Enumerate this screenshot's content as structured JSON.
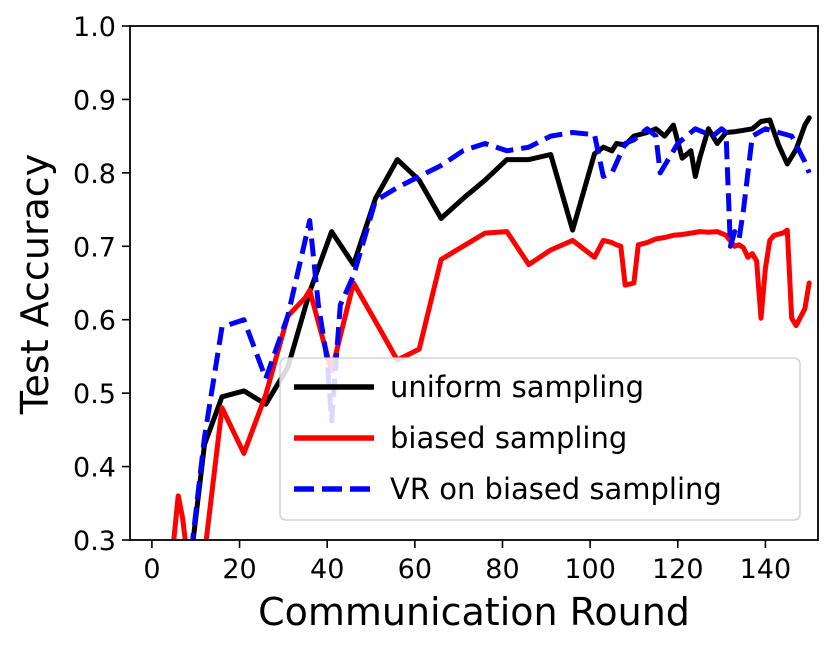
{
  "chart_data": {
    "type": "line",
    "xlabel": "Communication Round",
    "ylabel": "Test Accuracy",
    "xlim": [
      -5,
      152
    ],
    "ylim": [
      0.3,
      1.0
    ],
    "xticks": [
      "0",
      "20",
      "40",
      "60",
      "80",
      "100",
      "120",
      "140"
    ],
    "yticks": [
      "0.3",
      "0.4",
      "0.5",
      "0.6",
      "0.7",
      "0.8",
      "0.9",
      "1.0"
    ],
    "grid": false,
    "legend_position": "lower-right",
    "series": [
      {
        "name": "uniform sampling",
        "color": "#000000",
        "style": "solid",
        "x": [
          9,
          12,
          16,
          21,
          26,
          31,
          36,
          41,
          46,
          51,
          56,
          61,
          66,
          71,
          76,
          81,
          86,
          91,
          96,
          101,
          103,
          105,
          106,
          108,
          110,
          113,
          115,
          117,
          119,
          121,
          123,
          124,
          125,
          127,
          129,
          131,
          133,
          135,
          137,
          139,
          141,
          143,
          145,
          147,
          149,
          150
        ],
        "y": [
          0.28,
          0.43,
          0.495,
          0.503,
          0.485,
          0.535,
          0.638,
          0.72,
          0.675,
          0.765,
          0.818,
          0.79,
          0.738,
          0.765,
          0.79,
          0.818,
          0.818,
          0.825,
          0.722,
          0.826,
          0.835,
          0.83,
          0.84,
          0.838,
          0.85,
          0.855,
          0.86,
          0.85,
          0.865,
          0.82,
          0.83,
          0.795,
          0.82,
          0.86,
          0.84,
          0.855,
          0.856,
          0.858,
          0.86,
          0.87,
          0.872,
          0.838,
          0.812,
          0.832,
          0.865,
          0.875
        ]
      },
      {
        "name": "biased sampling",
        "color": "#ff0000",
        "style": "solid",
        "x": [
          5,
          6,
          7,
          8,
          10,
          12,
          16,
          21,
          26,
          31,
          35,
          36,
          41,
          46,
          51,
          56,
          61,
          66,
          71,
          76,
          81,
          86,
          91,
          96,
          101,
          103,
          105,
          106,
          107,
          108,
          110,
          111,
          113,
          115,
          117,
          119,
          121,
          123,
          125,
          127,
          129,
          131,
          133,
          134,
          135,
          136,
          137,
          138,
          139,
          140,
          141,
          142,
          144,
          145,
          146,
          147,
          149,
          150
        ],
        "y": [
          0.3,
          0.36,
          0.33,
          0.28,
          0.28,
          0.28,
          0.48,
          0.418,
          0.498,
          0.605,
          0.63,
          0.64,
          0.53,
          0.65,
          0.598,
          0.545,
          0.56,
          0.682,
          0.7,
          0.718,
          0.72,
          0.675,
          0.695,
          0.708,
          0.685,
          0.708,
          0.705,
          0.702,
          0.7,
          0.647,
          0.65,
          0.702,
          0.705,
          0.71,
          0.712,
          0.715,
          0.716,
          0.718,
          0.72,
          0.719,
          0.72,
          0.715,
          0.7,
          0.702,
          0.698,
          0.685,
          0.69,
          0.68,
          0.602,
          0.67,
          0.708,
          0.715,
          0.718,
          0.722,
          0.602,
          0.592,
          0.615,
          0.65
        ]
      },
      {
        "name": "VR on biased sampling",
        "color": "#0000ff",
        "style": "dashed",
        "x": [
          9,
          12,
          16,
          21,
          26,
          31,
          36,
          38,
          40,
          41,
          43,
          46,
          51,
          56,
          61,
          66,
          71,
          76,
          81,
          86,
          91,
          96,
          101,
          103,
          105,
          108,
          110,
          113,
          115,
          116,
          118,
          120,
          122,
          124,
          126,
          128,
          130,
          131,
          132,
          133,
          134,
          135,
          137,
          140,
          143,
          146,
          149,
          150
        ],
        "y": [
          0.285,
          0.44,
          0.59,
          0.6,
          0.52,
          0.605,
          0.735,
          0.62,
          0.545,
          0.462,
          0.62,
          0.66,
          0.762,
          0.78,
          0.795,
          0.81,
          0.83,
          0.84,
          0.83,
          0.835,
          0.85,
          0.855,
          0.852,
          0.795,
          0.8,
          0.84,
          0.845,
          0.86,
          0.85,
          0.8,
          0.82,
          0.84,
          0.85,
          0.86,
          0.855,
          0.85,
          0.86,
          0.855,
          0.7,
          0.72,
          0.71,
          0.75,
          0.85,
          0.86,
          0.855,
          0.85,
          0.815,
          0.8
        ]
      }
    ]
  }
}
